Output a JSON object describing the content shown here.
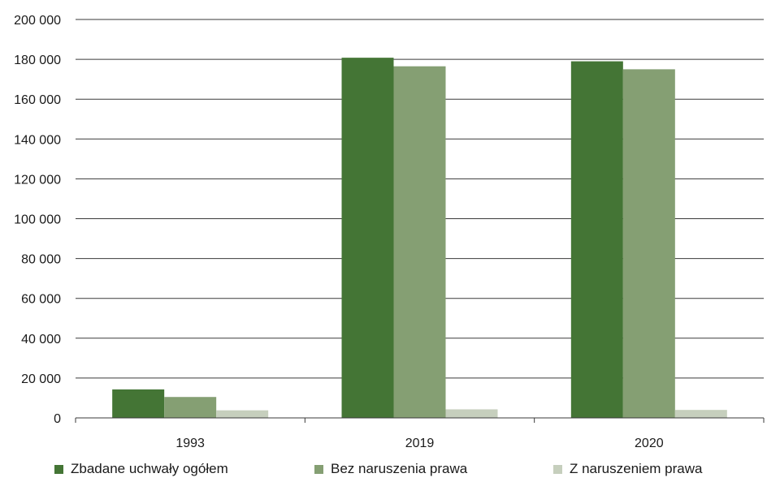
{
  "chart_data": {
    "type": "bar",
    "title": "",
    "xlabel": "",
    "ylabel": "",
    "categories": [
      "1993",
      "2019",
      "2020"
    ],
    "series": [
      {
        "name": "Zbadane uchwały ogółem",
        "values": [
          14300,
          180800,
          179000
        ],
        "color": "#447535"
      },
      {
        "name": "Bez naruszenia prawa",
        "values": [
          10500,
          176500,
          175000
        ],
        "color": "#859f73"
      },
      {
        "name": "Z naruszeniem prawa",
        "values": [
          3800,
          4300,
          4000
        ],
        "color": "#c6cfbd"
      }
    ],
    "ylim": [
      0,
      200000
    ],
    "yticks": [
      "0",
      "20 000",
      "40 000",
      "60 000",
      "80 000",
      "100 000",
      "120 000",
      "140 000",
      "160 000",
      "180 000",
      "200 000"
    ],
    "grid": true,
    "legend_position": "bottom"
  }
}
